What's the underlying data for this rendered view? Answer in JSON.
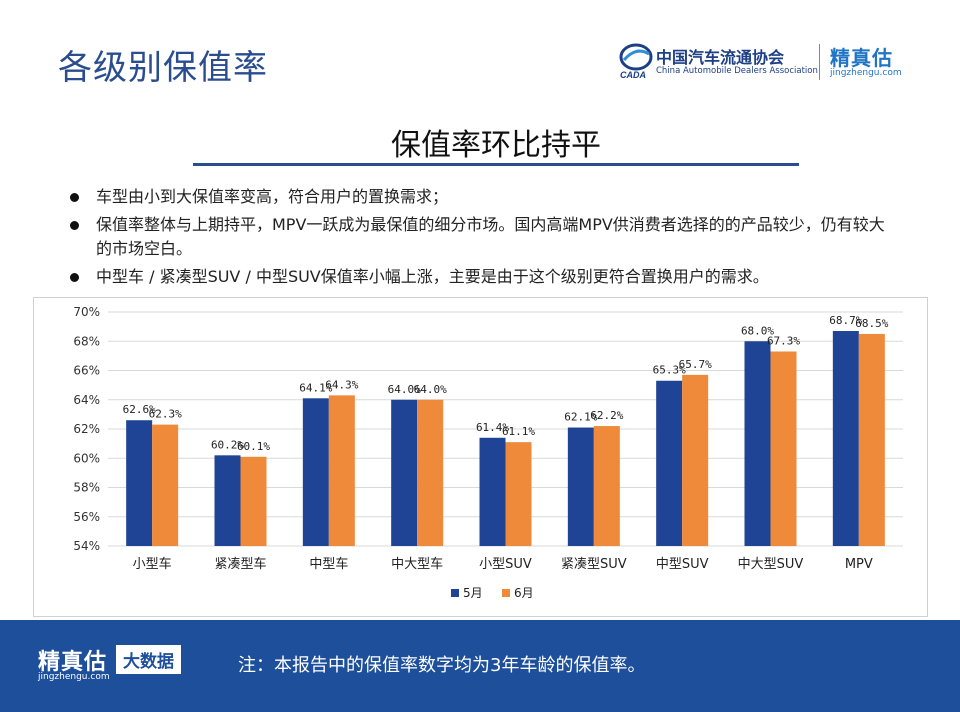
{
  "header": {
    "title": "各级别保值率",
    "cada_name": "中国汽车流通协会",
    "cada_en": "China Automobile Dealers Association",
    "cada_mark_text": "CADA",
    "jzg_name": "精真估",
    "jzg_url": "jingzhengu.com"
  },
  "subtitle": "保值率环比持平",
  "bullets": [
    "车型由小到大保值率变高，符合用户的置换需求；",
    "保值率整体与上期持平，MPV一跃成为最保值的细分市场。国内高端MPV供消费者选择的的产品较少，仍有较大的市场空白。",
    "中型车 / 紧凑型SUV / 中型SUV保值率小幅上涨，主要是由于这个级别更符合置换用户的需求。"
  ],
  "footer": {
    "brand": "精真估",
    "url": "jingzhengu.com",
    "badge": "大数据",
    "note": "注：本报告中的保值率数字均为3年车龄的保值率。"
  },
  "colors": {
    "series_may": "#1f4496",
    "series_june": "#ee8a3a",
    "title_blue": "#2a4d8f",
    "footer_bg": "#1d4f9a"
  },
  "chart_data": {
    "type": "bar",
    "categories": [
      "小型车",
      "紧凑型车",
      "中型车",
      "中大型车",
      "小型SUV",
      "紧凑型SUV",
      "中型SUV",
      "中大型SUV",
      "MPV"
    ],
    "series": [
      {
        "name": "5月",
        "values": [
          62.6,
          60.2,
          64.1,
          64.0,
          61.4,
          62.1,
          65.3,
          68.0,
          68.7
        ],
        "labels": [
          "62.6%",
          "60.2%",
          "64.1%",
          "64.0%",
          "61.4%",
          "62.1%",
          "65.3%",
          "68.0%",
          "68.7%"
        ]
      },
      {
        "name": "6月",
        "values": [
          62.3,
          60.1,
          64.3,
          64.0,
          61.1,
          62.2,
          65.7,
          67.3,
          68.5
        ],
        "labels": [
          "62.3%",
          "60.1%",
          "64.3%",
          "64.0%",
          "61.1%",
          "62.2%",
          "65.7%",
          "67.3%",
          "68.5%"
        ]
      }
    ],
    "ylim": [
      54,
      70
    ],
    "yticks": [
      54,
      56,
      58,
      60,
      62,
      64,
      66,
      68,
      70
    ],
    "ytick_labels": [
      "54%",
      "56%",
      "58%",
      "60%",
      "62%",
      "64%",
      "66%",
      "68%",
      "70%"
    ],
    "grid": true,
    "legend_position": "bottom"
  }
}
